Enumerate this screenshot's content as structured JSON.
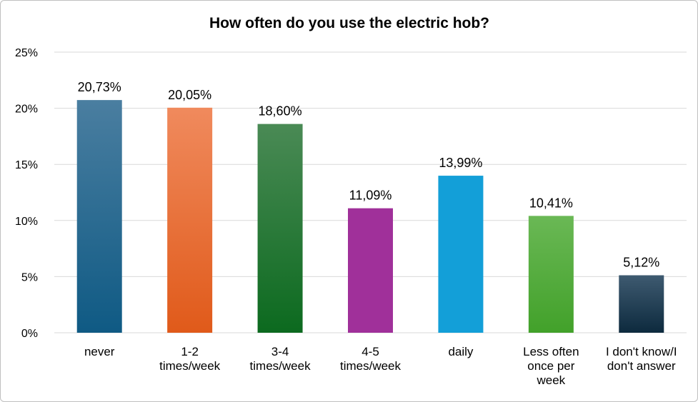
{
  "chart_data": {
    "type": "bar",
    "title": "How often do you use the electric hob?",
    "categories": [
      [
        "never"
      ],
      [
        "1-2",
        "times/week"
      ],
      [
        "3-4",
        "times/week"
      ],
      [
        "4-5",
        "times/week"
      ],
      [
        "daily"
      ],
      [
        "Less often",
        "once per",
        "week"
      ],
      [
        "I don't know/I",
        "don't answer"
      ]
    ],
    "values": [
      20.73,
      20.05,
      18.6,
      11.09,
      13.99,
      10.41,
      5.12
    ],
    "data_labels": [
      "20,73%",
      "20,05%",
      "18,60%",
      "11,09%",
      "13,99%",
      "10,41%",
      "5,12%"
    ],
    "ylim": [
      0,
      25
    ],
    "yticks": [
      0,
      5,
      10,
      15,
      20,
      25
    ],
    "ytick_labels": [
      "0%",
      "5%",
      "10%",
      "15%",
      "20%",
      "25%"
    ],
    "grid": true,
    "legend": "none",
    "bar_colors": [
      [
        "#4a7ea0",
        "#0f5a84"
      ],
      [
        "#f08a5d",
        "#e05a1a"
      ],
      [
        "#4a8a55",
        "#0c6a1f"
      ],
      [
        "#a0309a",
        "#a0309a"
      ],
      [
        "#139fd8",
        "#139fd8"
      ],
      [
        "#6ab855",
        "#42a12a"
      ],
      [
        "#3e5a70",
        "#0d2a3e"
      ]
    ]
  }
}
